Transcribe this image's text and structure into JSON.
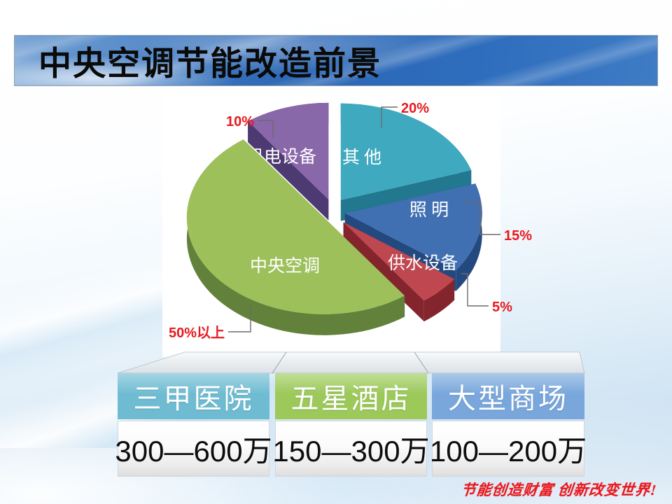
{
  "slide": {
    "title": "中央空调节能改造前景"
  },
  "chart_data": {
    "type": "pie",
    "style": "3d-exploded",
    "slices": [
      {
        "name": "其 他",
        "percent": 20,
        "percent_label": "20%",
        "color": "#3fa9bf",
        "side_color": "#22788e"
      },
      {
        "name": "照 明",
        "percent": 15,
        "percent_label": "15%",
        "color": "#4170b2",
        "side_color": "#24497f"
      },
      {
        "name": "供水设备",
        "percent": 5,
        "percent_label": "5%",
        "color": "#bf4750",
        "side_color": "#84242c"
      },
      {
        "name": "中央空调",
        "percent": 50,
        "percent_label": "50%以上",
        "color": "#9dc05b",
        "side_color": "#62813a"
      },
      {
        "name": "机电设备",
        "percent": 10,
        "percent_label": "10%",
        "color": "#8968aa",
        "side_color": "#4e3a72"
      }
    ]
  },
  "table": {
    "columns": [
      {
        "header": "三甲医院",
        "value": "300—600万",
        "header_color": "#6fbcd2"
      },
      {
        "header": "五星酒店",
        "value": "150—300万",
        "header_color": "#9cc95a"
      },
      {
        "header": "大型商场",
        "value": "100—200万",
        "header_color": "#79a7dc"
      }
    ]
  },
  "footer": {
    "slogan": "节能创造财富 创新改变世界!"
  },
  "colors": {
    "accent_red": "#e8191f",
    "leader_line": "#6b6b6b",
    "chart_background": "#ffffff"
  }
}
